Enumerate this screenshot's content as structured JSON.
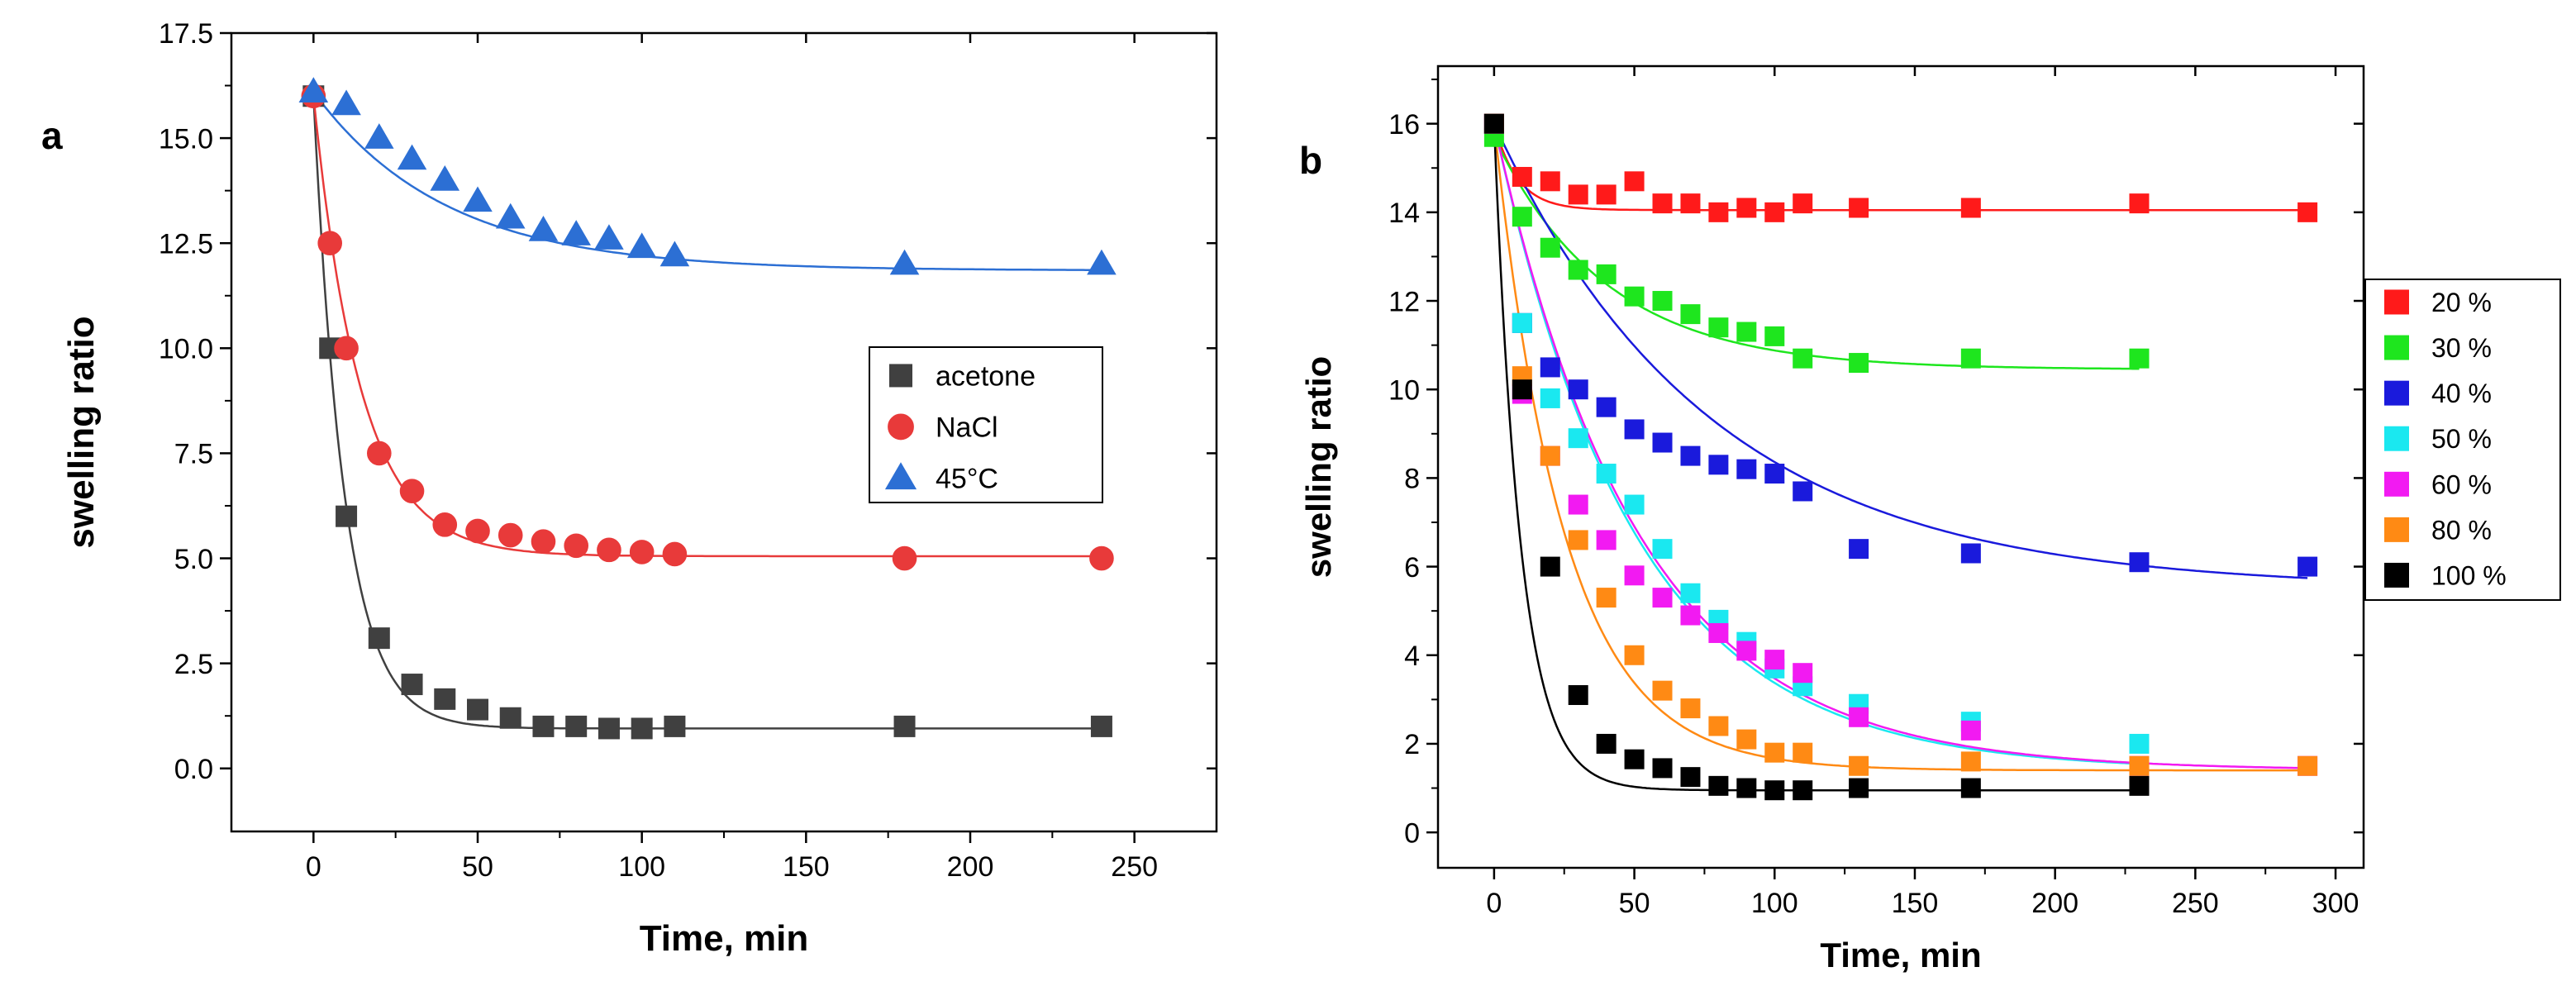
{
  "chart_data": [
    {
      "type": "scatter",
      "panel_label": "a",
      "title": "",
      "xlabel": "Time, min",
      "ylabel": "swelling ratio",
      "xlim": [
        -25,
        275
      ],
      "ylim": [
        -1.5,
        17.5
      ],
      "xticks": [
        0,
        50,
        100,
        150,
        200,
        250
      ],
      "xtick_labels": [
        "0",
        "50",
        "100",
        "150",
        "200",
        "250"
      ],
      "yticks": [
        0,
        2.5,
        5,
        7.5,
        10,
        12.5,
        15,
        17.5
      ],
      "ytick_labels": [
        "0.0",
        "2.5",
        "5.0",
        "7.5",
        "10.0",
        "12.5",
        "15.0",
        "17.5"
      ],
      "grid": false,
      "legend_position": "center-right",
      "series": [
        {
          "name": "acetone",
          "marker": "square",
          "color": "#404040",
          "x": [
            0,
            5,
            10,
            20,
            30,
            40,
            50,
            60,
            70,
            80,
            90,
            100,
            110,
            180,
            240
          ],
          "y": [
            16.0,
            10.0,
            6.0,
            3.1,
            2.0,
            1.65,
            1.4,
            1.2,
            1.0,
            1.0,
            0.95,
            0.95,
            1.0,
            1.0,
            1.0
          ],
          "fit": {
            "ymin": 0.95,
            "amp": 15.05,
            "k": 0.105
          }
        },
        {
          "name": "NaCl",
          "marker": "circle",
          "color": "#e83a3a",
          "x": [
            0,
            5,
            10,
            20,
            30,
            40,
            50,
            60,
            70,
            80,
            90,
            100,
            110,
            180,
            240
          ],
          "y": [
            16.0,
            12.5,
            10.0,
            7.5,
            6.6,
            5.8,
            5.65,
            5.55,
            5.4,
            5.3,
            5.2,
            5.15,
            5.1,
            5.0,
            5.0
          ],
          "fit": {
            "ymin": 5.05,
            "amp": 10.95,
            "k": 0.07
          }
        },
        {
          "name": "45°C",
          "marker": "triangle",
          "color": "#2c6fd4",
          "x": [
            0,
            10,
            20,
            30,
            40,
            50,
            60,
            70,
            80,
            90,
            100,
            110,
            180,
            240
          ],
          "y": [
            16.1,
            15.8,
            15.0,
            14.5,
            14.0,
            13.5,
            13.1,
            12.8,
            12.7,
            12.6,
            12.4,
            12.2,
            12.0,
            12.0
          ],
          "fit": {
            "ymin": 11.85,
            "amp": 4.25,
            "k": 0.025
          }
        }
      ]
    },
    {
      "type": "scatter",
      "panel_label": "b",
      "title": "",
      "xlabel": "Time, min",
      "ylabel": "swelling ratio",
      "xlim": [
        -20,
        310
      ],
      "ylim": [
        -0.8,
        17.3
      ],
      "xticks": [
        0,
        50,
        100,
        150,
        200,
        250,
        300
      ],
      "xtick_labels": [
        "0",
        "50",
        "100",
        "150",
        "200",
        "250",
        "300"
      ],
      "yticks": [
        0,
        2,
        4,
        6,
        8,
        10,
        12,
        14,
        16
      ],
      "ytick_labels": [
        "0",
        "2",
        "4",
        "6",
        "8",
        "10",
        "12",
        "14",
        "16"
      ],
      "grid": false,
      "legend_position": "right-outside",
      "series": [
        {
          "name": "20 %",
          "marker": "square",
          "color": "#ff1a1a",
          "x": [
            0,
            10,
            20,
            30,
            40,
            50,
            60,
            70,
            80,
            90,
            100,
            110,
            130,
            170,
            230,
            290
          ],
          "y": [
            16.0,
            14.8,
            14.7,
            14.4,
            14.4,
            14.7,
            14.2,
            14.2,
            14.0,
            14.1,
            14.0,
            14.2,
            14.1,
            14.1,
            14.2,
            14.0
          ],
          "fit": {
            "ymin": 14.05,
            "amp": 1.95,
            "k": 0.12
          }
        },
        {
          "name": "30 %",
          "marker": "square",
          "color": "#1ee61e",
          "x": [
            0,
            10,
            20,
            30,
            40,
            50,
            60,
            70,
            80,
            90,
            100,
            110,
            130,
            170,
            230
          ],
          "y": [
            15.7,
            13.9,
            13.2,
            12.7,
            12.6,
            12.1,
            12.0,
            11.7,
            11.4,
            11.3,
            11.2,
            10.7,
            10.6,
            10.7,
            10.7
          ],
          "fit": {
            "ymin": 10.45,
            "amp": 5.25,
            "k": 0.025
          }
        },
        {
          "name": "40 %",
          "marker": "square",
          "color": "#1a1adc",
          "x": [
            0,
            10,
            20,
            30,
            40,
            50,
            60,
            70,
            80,
            90,
            100,
            110,
            130,
            170,
            230,
            290
          ],
          "y": [
            16.0,
            11.5,
            10.5,
            10.0,
            9.6,
            9.1,
            8.8,
            8.5,
            8.3,
            8.2,
            8.1,
            7.7,
            6.4,
            6.3,
            6.1,
            6.0
          ],
          "fit": {
            "ymin": 5.5,
            "amp": 10.5,
            "k": 0.013
          }
        },
        {
          "name": "50 %",
          "marker": "square",
          "color": "#1ae8f0",
          "x": [
            0,
            10,
            20,
            30,
            40,
            50,
            60,
            70,
            80,
            90,
            100,
            110,
            130,
            170,
            230
          ],
          "y": [
            16.0,
            11.5,
            9.8,
            8.9,
            8.1,
            7.4,
            6.4,
            5.4,
            4.8,
            4.3,
            3.7,
            3.3,
            2.9,
            2.5,
            2.0
          ],
          "fit": {
            "ymin": 1.4,
            "amp": 14.6,
            "k": 0.02
          }
        },
        {
          "name": "60 %",
          "marker": "square",
          "color": "#f21af2",
          "x": [
            0,
            10,
            20,
            30,
            40,
            50,
            60,
            70,
            80,
            90,
            100,
            110,
            130,
            170,
            230,
            290
          ],
          "y": [
            16.0,
            9.9,
            8.5,
            7.4,
            6.6,
            5.8,
            5.3,
            4.9,
            4.5,
            4.1,
            3.9,
            3.6,
            2.6,
            2.3,
            1.5,
            1.5
          ],
          "fit": {
            "ymin": 1.4,
            "amp": 14.6,
            "k": 0.0195
          }
        },
        {
          "name": "80 %",
          "marker": "square",
          "color": "#ff8a14",
          "x": [
            0,
            10,
            20,
            30,
            40,
            50,
            60,
            70,
            80,
            90,
            100,
            110,
            130,
            170,
            230,
            290
          ],
          "y": [
            16.0,
            10.3,
            8.5,
            6.6,
            5.3,
            4.0,
            3.2,
            2.8,
            2.4,
            2.1,
            1.8,
            1.8,
            1.5,
            1.6,
            1.5,
            1.5
          ],
          "fit": {
            "ymin": 1.4,
            "amp": 14.6,
            "k": 0.04
          }
        },
        {
          "name": "100 %",
          "marker": "square",
          "color": "#000000",
          "x": [
            0,
            10,
            20,
            30,
            40,
            50,
            60,
            70,
            80,
            90,
            100,
            110,
            130,
            170,
            230
          ],
          "y": [
            16.0,
            10.0,
            6.0,
            3.1,
            2.0,
            1.65,
            1.45,
            1.25,
            1.05,
            1.0,
            0.95,
            0.95,
            1.0,
            1.0,
            1.05
          ],
          "fit": {
            "ymin": 0.95,
            "amp": 15.05,
            "k": 0.105
          }
        }
      ]
    }
  ]
}
